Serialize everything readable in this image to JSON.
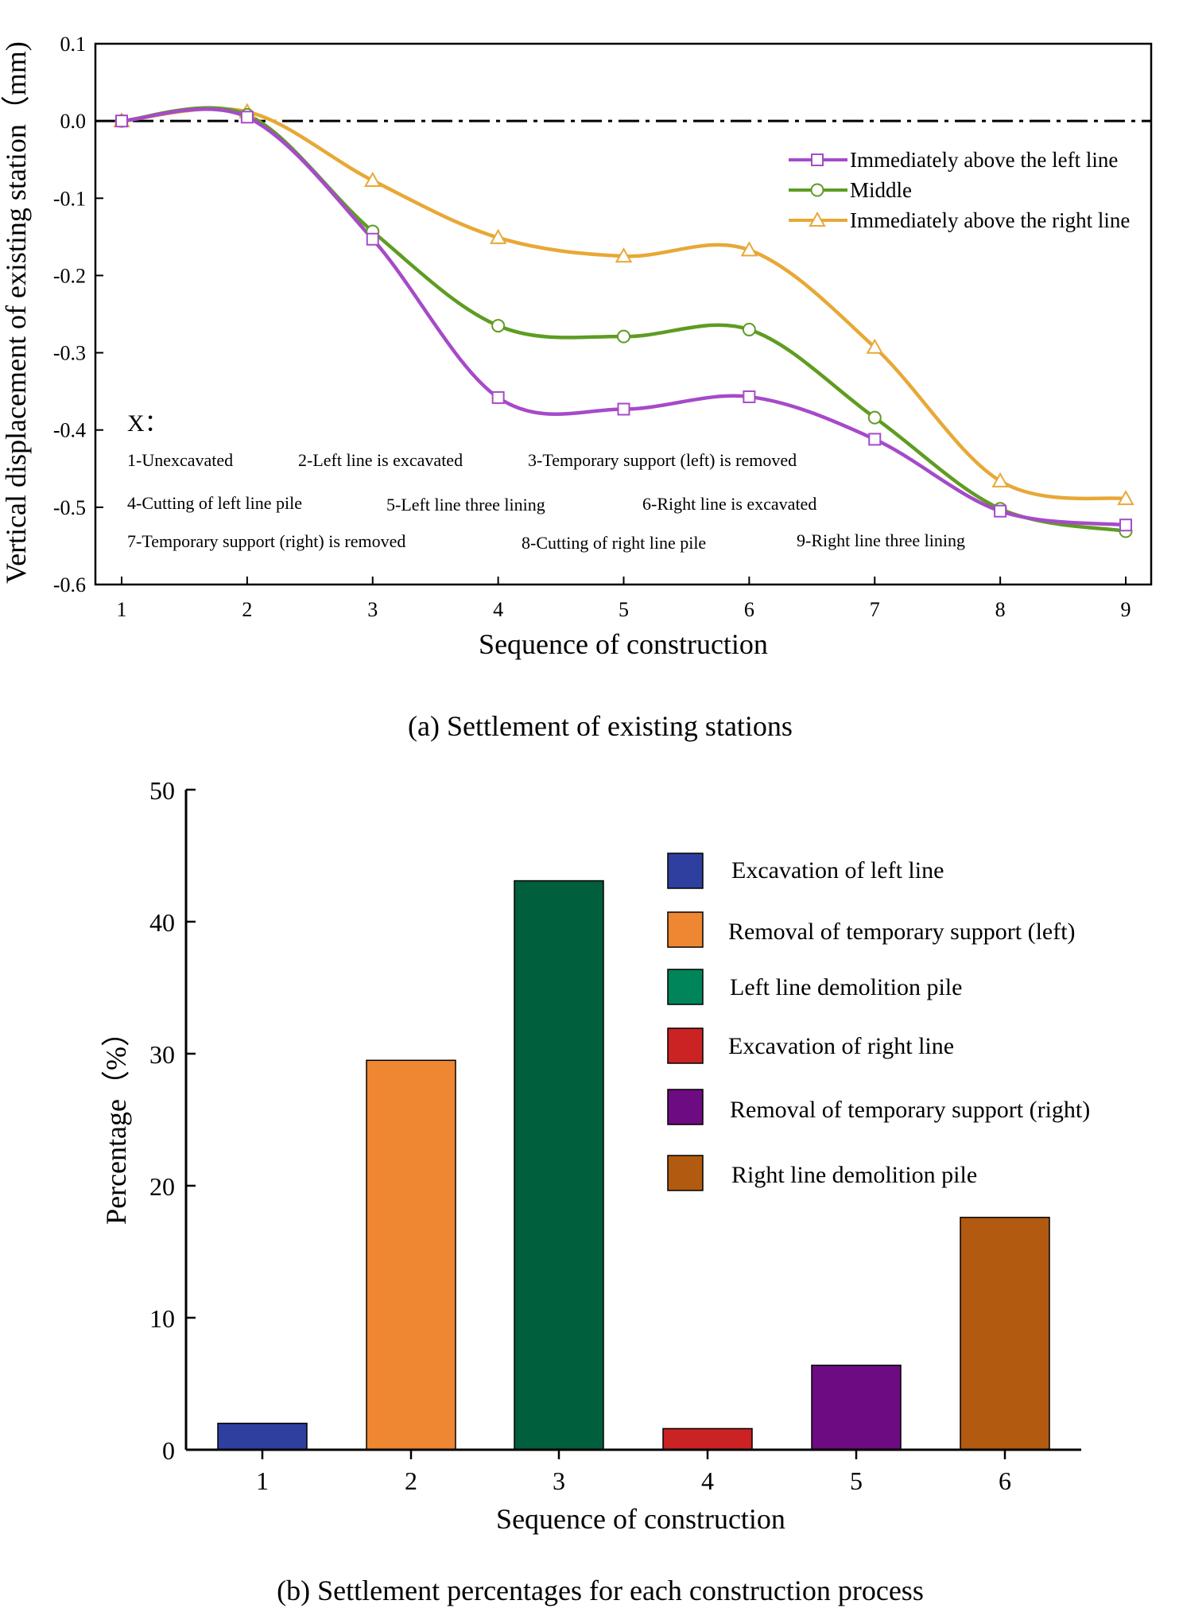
{
  "chart_data": [
    {
      "type": "line",
      "caption": "(a) Settlement of existing stations",
      "xlabel": "Sequence of construction",
      "ylabel": "Vertical displacement of existing station（mm)",
      "x": [
        1,
        2,
        3,
        4,
        5,
        6,
        7,
        8,
        9
      ],
      "xticks": [
        "1",
        "2",
        "3",
        "4",
        "5",
        "6",
        "7",
        "8",
        "9"
      ],
      "yticks": [
        "0.1",
        "0.0",
        "-0.1",
        "-0.2",
        "-0.3",
        "-0.4",
        "-0.5",
        "-0.6"
      ],
      "ylim": [
        -0.6,
        0.1
      ],
      "xlim": [
        1,
        9
      ],
      "reference_line_y": 0,
      "series": [
        {
          "name": "Immediately above the left line",
          "color": "#a64ac9",
          "marker": "square",
          "values": [
            0.0,
            0.005,
            -0.153,
            -0.358,
            -0.373,
            -0.357,
            -0.412,
            -0.505,
            -0.523
          ]
        },
        {
          "name": "Middle",
          "color": "#5e9c22",
          "marker": "circle",
          "values": [
            0.0,
            0.008,
            -0.143,
            -0.265,
            -0.279,
            -0.27,
            -0.384,
            -0.502,
            -0.531
          ]
        },
        {
          "name": "Immediately above the right line",
          "color": "#e8a836",
          "marker": "triangle",
          "values": [
            0.0,
            0.012,
            -0.077,
            -0.151,
            -0.175,
            -0.167,
            -0.293,
            -0.466,
            -0.489
          ]
        }
      ],
      "notes_title": "X：",
      "notes": [
        "1-Unexcavated",
        "2-Left line is excavated",
        "3-Temporary support (left) is removed",
        "4-Cutting of left line pile",
        "5-Left line three lining",
        "6-Right line is excavated",
        "7-Temporary support (right) is removed",
        "8-Cutting of right line pile",
        "9-Right line three lining"
      ]
    },
    {
      "type": "bar",
      "caption": "(b) Settlement percentages for each construction process",
      "xlabel": "Sequence of construction",
      "ylabel": "Percentage（%）",
      "categories": [
        "1",
        "2",
        "3",
        "4",
        "5",
        "6"
      ],
      "values": [
        2.0,
        29.5,
        43.1,
        1.6,
        6.4,
        17.6
      ],
      "yticks": [
        "0",
        "10",
        "20",
        "30",
        "40",
        "50"
      ],
      "ylim": [
        0,
        50
      ],
      "colors": [
        "#2f3f9f",
        "#ee8632",
        "#005f3c",
        "#cb2323",
        "#6d0b82",
        "#b25a10"
      ],
      "legend": [
        {
          "label": "Excavation of left line",
          "color": "#2f3f9f"
        },
        {
          "label": "Removal of temporary support (left)",
          "color": "#ee8632"
        },
        {
          "label": "Left line demolition pile",
          "color": "#00855a"
        },
        {
          "label": "Excavation of right line",
          "color": "#cb2323"
        },
        {
          "label": "Removal of temporary support (right)",
          "color": "#6d0b82"
        },
        {
          "label": "Right line demolition pile",
          "color": "#b25a10"
        }
      ]
    }
  ]
}
